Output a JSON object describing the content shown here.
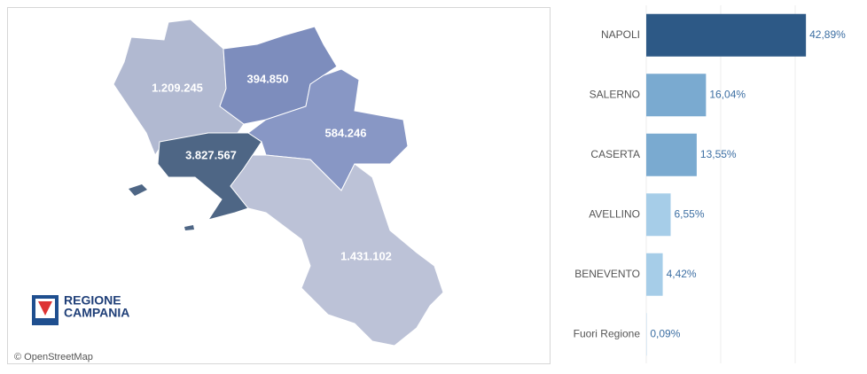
{
  "chart_data": [
    {
      "type": "map",
      "values": [
        1209245,
        394850,
        584246,
        3827567,
        1431102
      ],
      "value_labels": [
        "1.209.245",
        "394.850",
        "584.246",
        "3.827.567",
        "1.431.102"
      ],
      "colors": [
        "#b1b9d1",
        "#7d8dbd",
        "#8897c5",
        "#4e6685",
        "#bcc2d7"
      ]
    },
    {
      "type": "bar",
      "categories": [
        "NAPOLI",
        "SALERNO",
        "CASERTA",
        "AVELLINO",
        "BENEVENTO",
        "Fuori Regione"
      ],
      "values": [
        42.89,
        16.04,
        13.55,
        6.55,
        4.42,
        0.09
      ],
      "value_labels": [
        "42,89%",
        "16,04%",
        "13,55%",
        "6,55%",
        "4,42%",
        "0,09%"
      ],
      "colors": [
        "#2d5986",
        "#7aaad0",
        "#7aaad0",
        "#a6cde8",
        "#a6cde8",
        "#a6cde8"
      ],
      "xlim": [
        0,
        50
      ],
      "xticks": [
        0,
        20,
        40
      ],
      "grid": true
    }
  ],
  "attribution": "© OpenStreetMap",
  "logo": [
    "REGIONE",
    "CAMPANIA"
  ]
}
